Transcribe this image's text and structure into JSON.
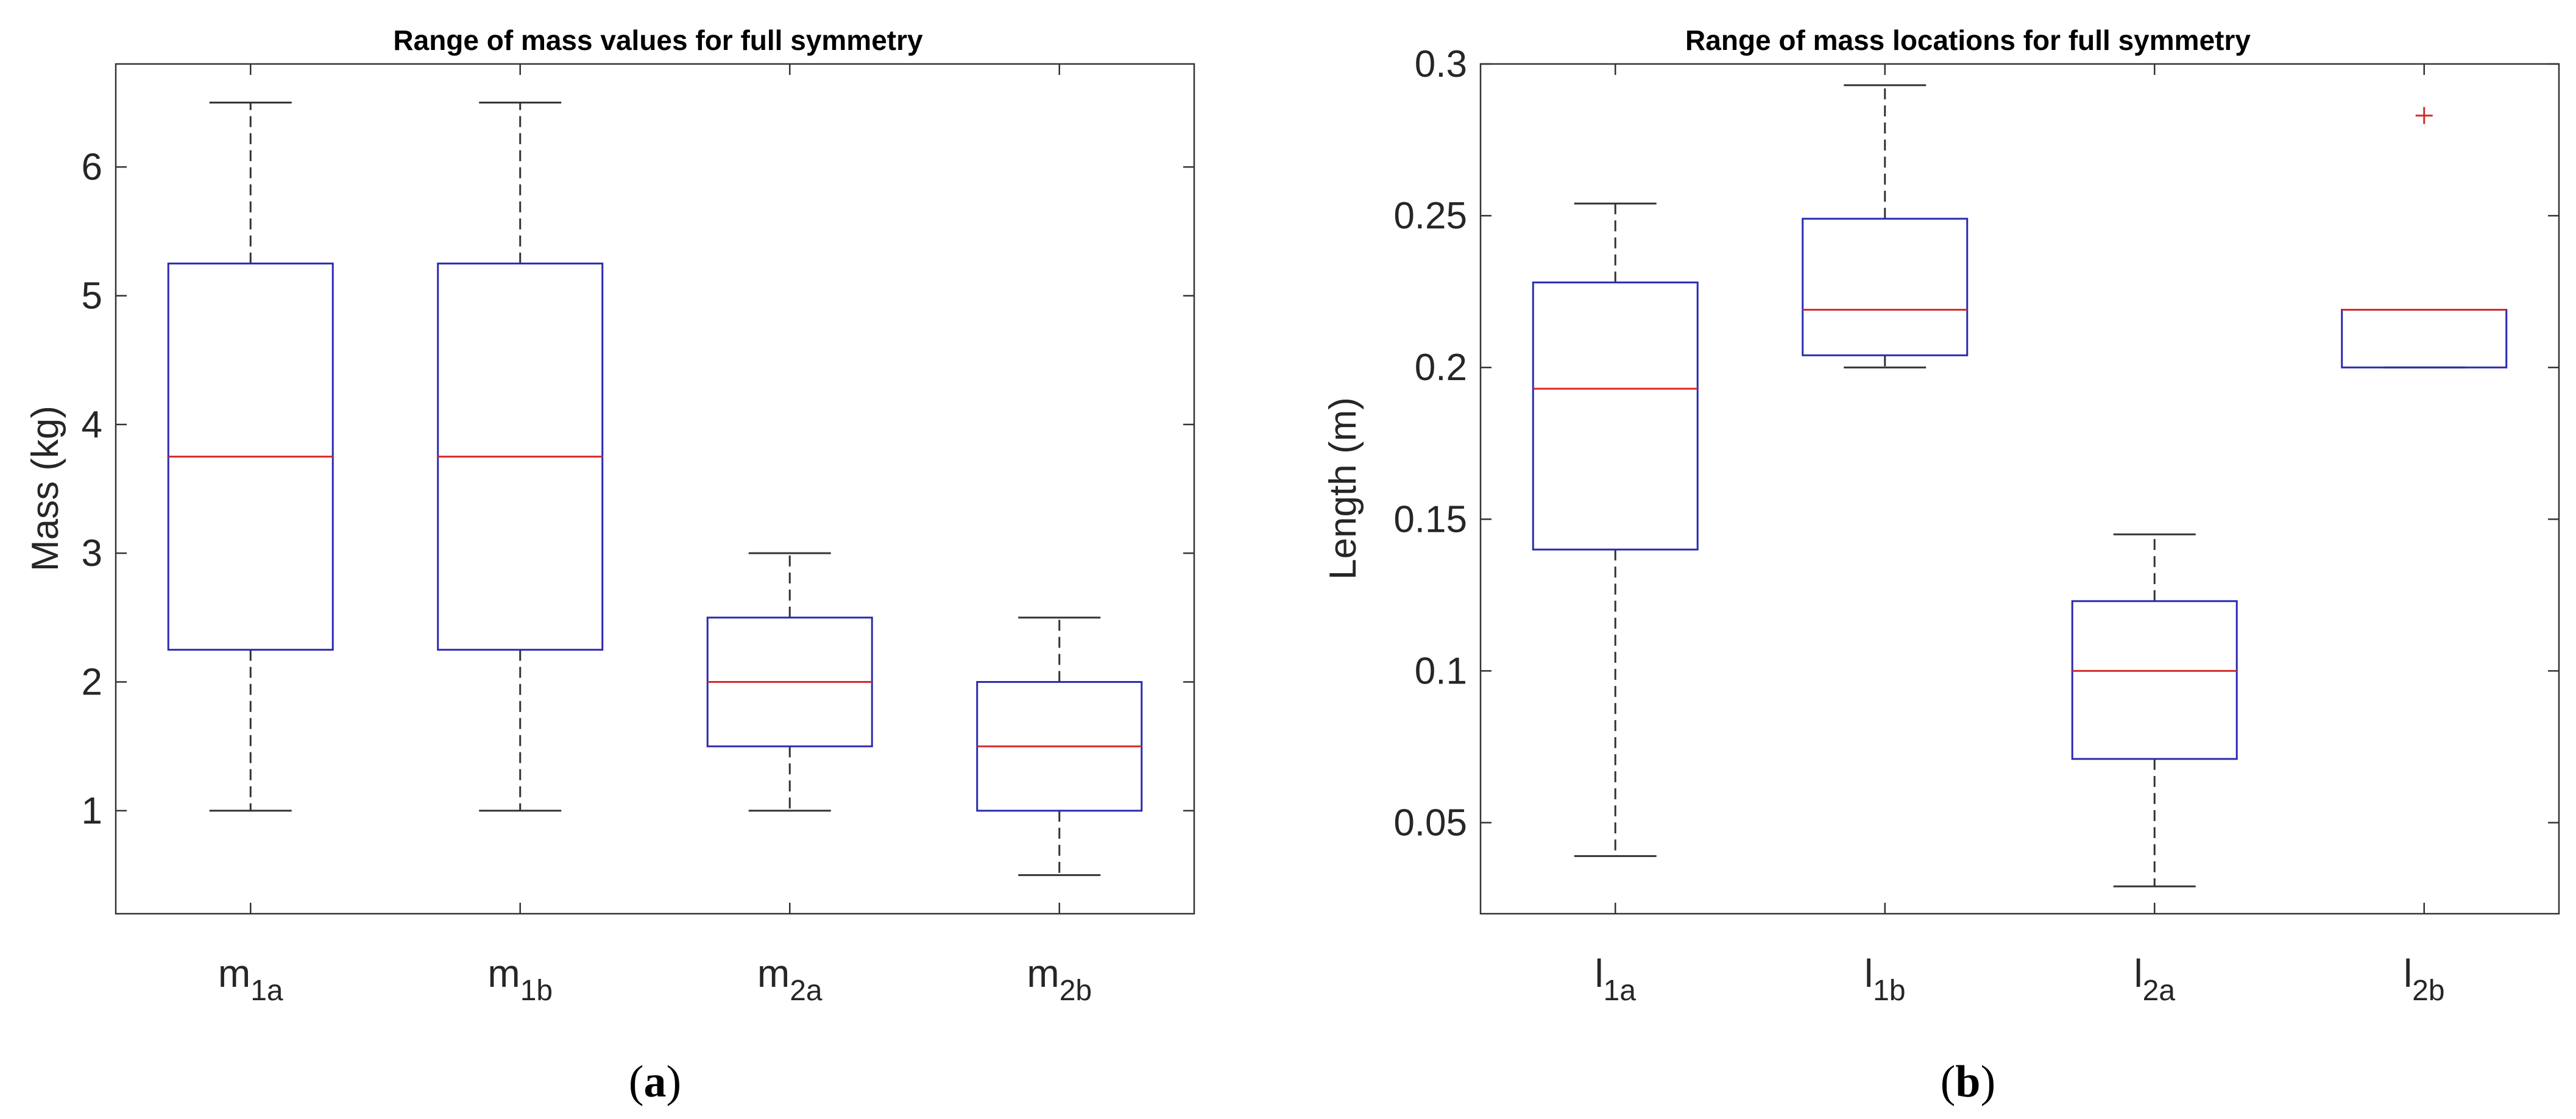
{
  "chart_data": [
    {
      "type": "boxplot",
      "panel": "a",
      "title": "Range of mass values for full symmetry",
      "xlabel": "",
      "ylabel": "Mass (kg)",
      "ylim": [
        0.2,
        6.8
      ],
      "yticks": [
        1,
        2,
        3,
        4,
        5,
        6
      ],
      "categories": [
        {
          "base": "m",
          "sub": "1a"
        },
        {
          "base": "m",
          "sub": "1b"
        },
        {
          "base": "m",
          "sub": "2a"
        },
        {
          "base": "m",
          "sub": "2b"
        }
      ],
      "boxes": [
        {
          "min": 1.0,
          "q1": 2.25,
          "median": 3.75,
          "q3": 5.25,
          "max": 6.5,
          "outliers": []
        },
        {
          "min": 1.0,
          "q1": 2.25,
          "median": 3.75,
          "q3": 5.25,
          "max": 6.5,
          "outliers": []
        },
        {
          "min": 1.0,
          "q1": 1.5,
          "median": 2.0,
          "q3": 2.5,
          "max": 3.0,
          "outliers": []
        },
        {
          "min": 0.5,
          "q1": 1.0,
          "median": 1.5,
          "q3": 2.0,
          "max": 2.5,
          "outliers": []
        }
      ]
    },
    {
      "type": "boxplot",
      "panel": "b",
      "title": "Range of mass locations for full symmetry",
      "xlabel": "",
      "ylabel": "Length (m)",
      "ylim": [
        0.02,
        0.3
      ],
      "yticks": [
        0.05,
        0.1,
        0.15,
        0.2,
        0.25,
        0.3
      ],
      "categories": [
        {
          "base": "l",
          "sub": "1a"
        },
        {
          "base": "l",
          "sub": "1b"
        },
        {
          "base": "l",
          "sub": "2a"
        },
        {
          "base": "l",
          "sub": "2b"
        }
      ],
      "boxes": [
        {
          "min": 0.039,
          "q1": 0.14,
          "median": 0.193,
          "q3": 0.228,
          "max": 0.254,
          "outliers": []
        },
        {
          "min": 0.2,
          "q1": 0.204,
          "median": 0.219,
          "q3": 0.249,
          "max": 0.293,
          "outliers": []
        },
        {
          "min": 0.029,
          "q1": 0.071,
          "median": 0.1,
          "q3": 0.123,
          "max": 0.145,
          "outliers": []
        },
        {
          "min": 0.2,
          "q1": 0.2,
          "median": 0.219,
          "q3": 0.219,
          "max": 0.219,
          "outliers": [
            0.283
          ]
        }
      ]
    }
  ],
  "captions": {
    "a": {
      "open": "(",
      "letter": "a",
      "close": ")"
    },
    "b": {
      "open": "(",
      "letter": "b",
      "close": ")"
    }
  }
}
